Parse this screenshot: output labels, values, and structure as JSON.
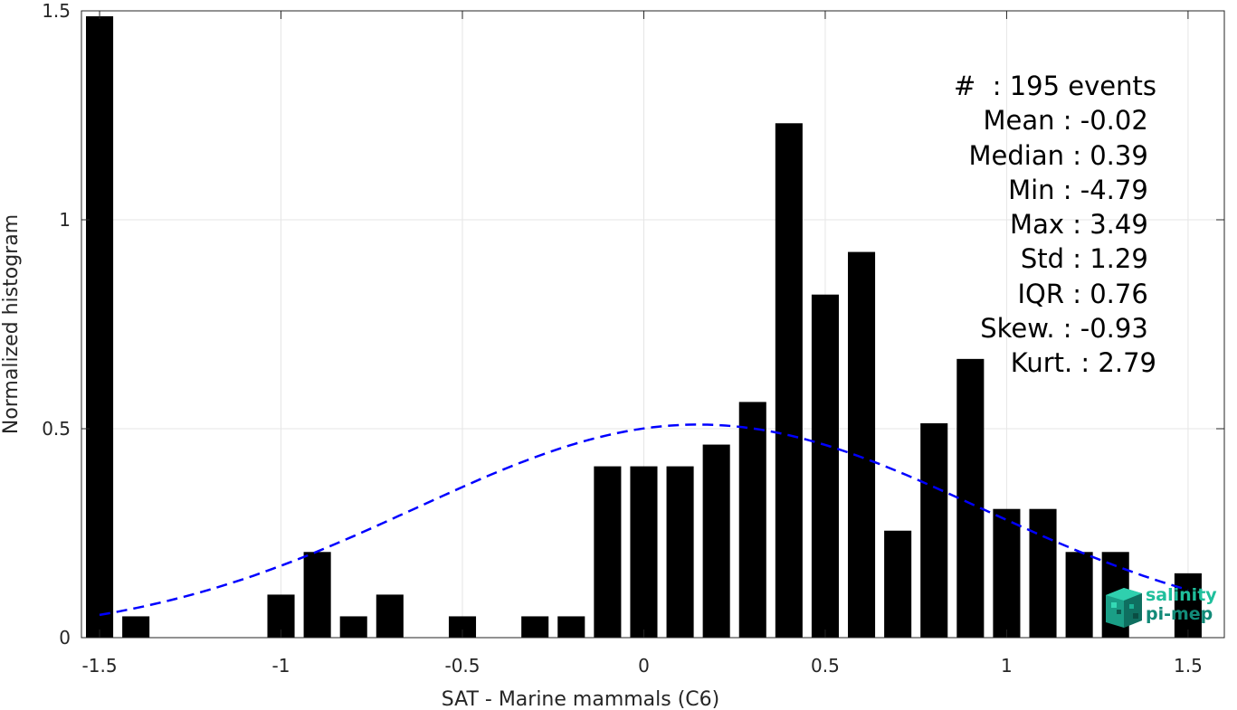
{
  "chart_data": {
    "type": "bar",
    "xlabel": "SAT - Marine mammals (C6)",
    "ylabel": "Normalized histogram",
    "xlim": [
      -1.55,
      1.6
    ],
    "ylim": [
      0,
      1.5
    ],
    "xticks": [
      -1.5,
      -1,
      -0.5,
      0,
      0.5,
      1,
      1.5
    ],
    "xtick_labels": [
      "-1.5",
      "-1",
      "-0.5",
      "0",
      "0.5",
      "1",
      "1.5"
    ],
    "yticks": [
      0,
      0.5,
      1,
      1.5
    ],
    "ytick_labels": [
      "0",
      "0.5",
      "1",
      "1.5"
    ],
    "grid": true,
    "bar_width": 0.075,
    "x": [
      -1.5,
      -1.4,
      -1.3,
      -1.2,
      -1.1,
      -1.0,
      -0.9,
      -0.8,
      -0.7,
      -0.6,
      -0.5,
      -0.4,
      -0.3,
      -0.2,
      -0.1,
      0.0,
      0.1,
      0.2,
      0.3,
      0.4,
      0.5,
      0.6,
      0.7,
      0.8,
      0.9,
      1.0,
      1.1,
      1.2,
      1.3,
      1.4,
      1.5
    ],
    "values": [
      1.487,
      0.051,
      0,
      0,
      0,
      0.103,
      0.205,
      0.051,
      0.103,
      0,
      0.051,
      0,
      0.051,
      0.051,
      0.41,
      0.41,
      0.41,
      0.462,
      0.564,
      1.231,
      0.821,
      0.923,
      0.256,
      0.513,
      0.667,
      0.308,
      0.308,
      0.205,
      0.205,
      0,
      0.154
    ],
    "fit_curve": {
      "type": "normal",
      "mean": 0.15,
      "std": 0.78,
      "peak": 0.51,
      "x_start": -1.5,
      "x_end": 1.5,
      "color": "#0000ff",
      "style": "dashed"
    },
    "bar_color": "#000000"
  },
  "stats": [
    "#  : 195 events",
    "Mean : -0.02 ",
    "Median : 0.39 ",
    "Min : -4.79 ",
    "Max : 3.49 ",
    "Std : 1.29 ",
    "IQR : 0.76 ",
    "Skew. : -0.93 ",
    "Kurt. : 2.79"
  ],
  "logo": {
    "line1": "salinity",
    "line2": "pi-mep"
  }
}
